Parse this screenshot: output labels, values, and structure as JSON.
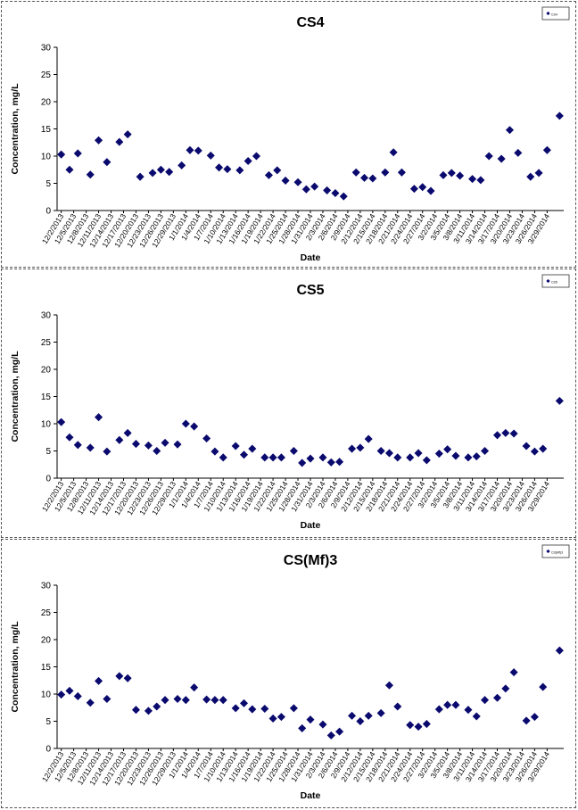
{
  "charts": [
    {
      "id": "cs4",
      "chart_data": {
        "type": "scatter",
        "title": "CS4",
        "xlabel": "Date",
        "ylabel": "Concentration, mg/L",
        "ylim": [
          0,
          30
        ],
        "yticks": [
          0,
          5,
          10,
          15,
          20,
          25,
          30
        ],
        "grid": false,
        "legend": {
          "position": "top-right",
          "entries": [
            "CS4"
          ]
        },
        "marker_color": "#0a0a6e",
        "x_tick_labels": [
          "12/2/2013",
          "12/5/2013",
          "12/8/2013",
          "12/11/2013",
          "12/14/2013",
          "12/17/2013",
          "12/20/2013",
          "12/23/2013",
          "12/26/2013",
          "12/29/2013",
          "1/1/2014",
          "1/4/2014",
          "1/7/2014",
          "1/10/2014",
          "1/13/2014",
          "1/16/2014",
          "1/19/2014",
          "1/22/2014",
          "1/25/2014",
          "1/28/2014",
          "1/31/2014",
          "2/3/2014",
          "2/6/2014",
          "2/9/2014",
          "2/12/2014",
          "2/15/2014",
          "2/18/2014",
          "2/21/2014",
          "2/24/2014",
          "2/27/2014",
          "3/2/2014",
          "3/5/2014",
          "3/8/2014",
          "3/11/2014",
          "3/14/2014",
          "3/17/2014",
          "3/20/2014",
          "3/23/2014",
          "3/26/2014",
          "3/29/2014"
        ],
        "series": [
          {
            "x": [
              "12/2/2013",
              "12/4/2013",
              "12/6/2013",
              "12/9/2013",
              "12/11/2013",
              "12/13/2013",
              "12/16/2013",
              "12/18/2013",
              "12/21/2013",
              "12/24/2013",
              "12/26/2013",
              "12/28/2013",
              "12/31/2013",
              "1/2/2014",
              "1/4/2014",
              "1/7/2014",
              "1/9/2014",
              "1/11/2014",
              "1/14/2014",
              "1/16/2014",
              "1/18/2014",
              "1/21/2014",
              "1/23/2014",
              "1/25/2014",
              "1/28/2014",
              "1/30/2014",
              "2/1/2014",
              "2/4/2014",
              "2/6/2014",
              "2/8/2014",
              "2/11/2014",
              "2/13/2014",
              "2/15/2014",
              "2/18/2014",
              "2/20/2014",
              "2/22/2014",
              "2/25/2014",
              "2/27/2014",
              "3/1/2014",
              "3/4/2014",
              "3/6/2014",
              "3/8/2014",
              "3/11/2014",
              "3/13/2014",
              "3/15/2014",
              "3/18/2014",
              "3/20/2014",
              "3/22/2014",
              "3/25/2014",
              "3/27/2014",
              "3/29/2014",
              "4/1/2014"
            ],
            "y": [
              10.3,
              7.5,
              10.5,
              6.6,
              12.9,
              8.9,
              12.6,
              14.0,
              6.2,
              6.9,
              7.5,
              7.1,
              8.3,
              11.1,
              11.0,
              10.1,
              7.9,
              7.6,
              7.4,
              9.1,
              10.0,
              6.5,
              7.4,
              5.5,
              5.2,
              3.9,
              4.4,
              3.7,
              3.2,
              2.6,
              7.0,
              6.0,
              5.9,
              7.0,
              10.7,
              7.0,
              4.0,
              4.3,
              3.6,
              6.5,
              6.9,
              6.4,
              5.8,
              5.6,
              10.0,
              9.5,
              14.8,
              10.6,
              6.2,
              6.9,
              11.1,
              17.4
            ]
          }
        ]
      }
    },
    {
      "id": "cs5",
      "chart_data": {
        "type": "scatter",
        "title": "CS5",
        "xlabel": "Date",
        "ylabel": "Concentration, mg/L",
        "ylim": [
          0,
          30
        ],
        "yticks": [
          0,
          5,
          10,
          15,
          20,
          25,
          30
        ],
        "grid": false,
        "legend": {
          "position": "top-right",
          "entries": [
            "CS5"
          ]
        },
        "marker_color": "#0a0a6e",
        "x_tick_labels": [
          "12/2/2013",
          "12/5/2013",
          "12/8/2013",
          "12/11/2013",
          "12/14/2013",
          "12/17/2013",
          "12/20/2013",
          "12/23/2013",
          "12/26/2013",
          "12/29/2013",
          "1/1/2014",
          "1/4/2014",
          "1/7/2014",
          "1/10/2014",
          "1/13/2014",
          "1/16/2014",
          "1/19/2014",
          "1/22/2014",
          "1/25/2014",
          "1/28/2014",
          "1/31/2014",
          "2/3/2014",
          "2/6/2014",
          "2/9/2014",
          "2/12/2014",
          "2/15/2014",
          "2/18/2014",
          "2/21/2014",
          "2/24/2014",
          "2/27/2014",
          "3/2/2014",
          "3/5/2014",
          "3/8/2014",
          "3/11/2014",
          "3/14/2014",
          "3/17/2014",
          "3/20/2014",
          "3/23/2014",
          "3/26/2014",
          "3/29/2014"
        ],
        "series": [
          {
            "x": [
              "12/2/2013",
              "12/4/2013",
              "12/6/2013",
              "12/9/2013",
              "12/11/2013",
              "12/13/2013",
              "12/16/2013",
              "12/18/2013",
              "12/20/2013",
              "12/23/2013",
              "12/25/2013",
              "12/27/2013",
              "12/30/2013",
              "1/1/2014",
              "1/3/2014",
              "1/6/2014",
              "1/8/2014",
              "1/10/2014",
              "1/13/2014",
              "1/15/2014",
              "1/17/2014",
              "1/20/2014",
              "1/22/2014",
              "1/24/2014",
              "1/27/2014",
              "1/29/2014",
              "1/31/2014",
              "2/3/2014",
              "2/5/2014",
              "2/7/2014",
              "2/10/2014",
              "2/12/2014",
              "2/14/2014",
              "2/17/2014",
              "2/19/2014",
              "2/21/2014",
              "2/24/2014",
              "2/26/2014",
              "2/28/2014",
              "3/3/2014",
              "3/5/2014",
              "3/7/2014",
              "3/10/2014",
              "3/12/2014",
              "3/14/2014",
              "3/17/2014",
              "3/19/2014",
              "3/21/2014",
              "3/24/2014",
              "3/26/2014",
              "3/28/2014",
              "4/1/2014"
            ],
            "y": [
              10.3,
              7.5,
              6.1,
              5.6,
              11.2,
              4.9,
              7.0,
              8.3,
              6.3,
              6.0,
              5.0,
              6.5,
              6.2,
              10.0,
              9.5,
              7.3,
              4.9,
              3.8,
              5.9,
              4.3,
              5.4,
              3.8,
              3.8,
              3.8,
              5.0,
              2.8,
              3.6,
              3.8,
              2.9,
              3.0,
              5.4,
              5.6,
              7.2,
              5.0,
              4.6,
              3.8,
              3.8,
              4.6,
              3.3,
              4.5,
              5.3,
              4.1,
              3.8,
              4.0,
              5.0,
              7.9,
              8.3,
              8.2,
              5.9,
              4.9,
              5.4,
              14.2
            ]
          }
        ]
      }
    },
    {
      "id": "csmf3",
      "chart_data": {
        "type": "scatter",
        "title": "CS(Mf)3",
        "xlabel": "Date",
        "ylabel": "Concentration, mg/L",
        "ylim": [
          0,
          30
        ],
        "yticks": [
          0,
          5,
          10,
          15,
          20,
          25,
          30
        ],
        "grid": false,
        "legend": {
          "position": "top-right",
          "entries": [
            "CS(Mf)3"
          ]
        },
        "marker_color": "#0a0a6e",
        "x_tick_labels": [
          "12/2/2013",
          "12/5/2013",
          "12/8/2013",
          "12/11/2013",
          "12/14/2013",
          "12/17/2013",
          "12/20/2013",
          "12/23/2013",
          "12/26/2013",
          "12/29/2013",
          "1/1/2014",
          "1/4/2014",
          "1/7/2014",
          "1/10/2014",
          "1/13/2014",
          "1/16/2014",
          "1/19/2014",
          "1/22/2014",
          "1/25/2014",
          "1/28/2014",
          "1/31/2014",
          "2/3/2014",
          "2/6/2014",
          "2/9/2014",
          "2/12/2014",
          "2/15/2014",
          "2/18/2014",
          "2/21/2014",
          "2/24/2014",
          "2/27/2014",
          "3/2/2014",
          "3/5/2014",
          "3/8/2014",
          "3/11/2014",
          "3/14/2014",
          "3/17/2014",
          "3/20/2014",
          "3/23/2014",
          "3/26/2014",
          "3/29/2014"
        ],
        "series": [
          {
            "x": [
              "12/2/2013",
              "12/4/2013",
              "12/6/2013",
              "12/9/2013",
              "12/11/2013",
              "12/13/2013",
              "12/16/2013",
              "12/18/2013",
              "12/20/2013",
              "12/23/2013",
              "12/25/2013",
              "12/27/2013",
              "12/30/2013",
              "1/1/2014",
              "1/3/2014",
              "1/6/2014",
              "1/8/2014",
              "1/10/2014",
              "1/13/2014",
              "1/15/2014",
              "1/17/2014",
              "1/20/2014",
              "1/22/2014",
              "1/24/2014",
              "1/27/2014",
              "1/29/2014",
              "1/31/2014",
              "2/3/2014",
              "2/5/2014",
              "2/7/2014",
              "2/10/2014",
              "2/12/2014",
              "2/14/2014",
              "2/17/2014",
              "2/19/2014",
              "2/21/2014",
              "2/24/2014",
              "2/26/2014",
              "2/28/2014",
              "3/3/2014",
              "3/5/2014",
              "3/7/2014",
              "3/10/2014",
              "3/12/2014",
              "3/14/2014",
              "3/17/2014",
              "3/19/2014",
              "3/21/2014",
              "3/24/2014",
              "3/26/2014",
              "3/28/2014",
              "4/1/2014"
            ],
            "y": [
              9.9,
              10.6,
              9.6,
              8.4,
              12.4,
              9.1,
              13.3,
              12.9,
              7.1,
              6.9,
              7.7,
              8.9,
              9.1,
              8.9,
              11.2,
              9.0,
              8.9,
              8.9,
              7.4,
              8.3,
              7.2,
              7.3,
              5.5,
              5.8,
              7.4,
              3.7,
              5.3,
              4.4,
              2.4,
              3.1,
              6.0,
              5.0,
              6.0,
              6.5,
              11.6,
              7.7,
              4.3,
              4.0,
              4.5,
              7.2,
              8.0,
              8.0,
              7.1,
              5.9,
              8.9,
              9.3,
              11.0,
              14.0,
              5.1,
              5.8,
              11.3,
              18.0
            ]
          }
        ]
      }
    }
  ]
}
